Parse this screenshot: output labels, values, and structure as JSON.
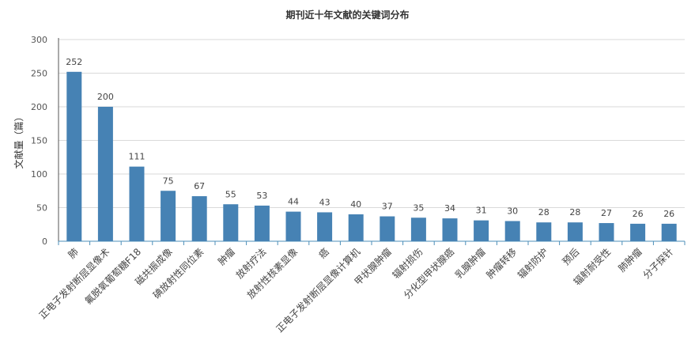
{
  "chart_data": {
    "type": "bar",
    "title": "期刊近十年文献的关键词分布",
    "ylabel": "文献量（篇）",
    "xlabel": "",
    "ylim": [
      0,
      300
    ],
    "yticks": [
      0,
      50,
      100,
      150,
      200,
      250,
      300
    ],
    "grid": true,
    "legend": "none",
    "bar_color": "#4682b4",
    "categories": [
      "肺",
      "正电子发射断层显像术",
      "氟脱氧葡萄糖F18",
      "磁共振成像",
      "碘放射性同位素",
      "肿瘤",
      "放射疗法",
      "放射性核素显像",
      "癌",
      "正电子发射断层显像计算机",
      "甲状腺肿瘤",
      "辐射损伤",
      "分化型甲状腺癌",
      "乳腺肿瘤",
      "肿瘤转移",
      "辐射防护",
      "预后",
      "辐射耐受性",
      "肺肿瘤",
      "分子探针"
    ],
    "values": [
      252,
      200,
      111,
      75,
      67,
      55,
      53,
      44,
      43,
      40,
      37,
      35,
      34,
      31,
      30,
      28,
      28,
      27,
      26,
      26
    ]
  }
}
